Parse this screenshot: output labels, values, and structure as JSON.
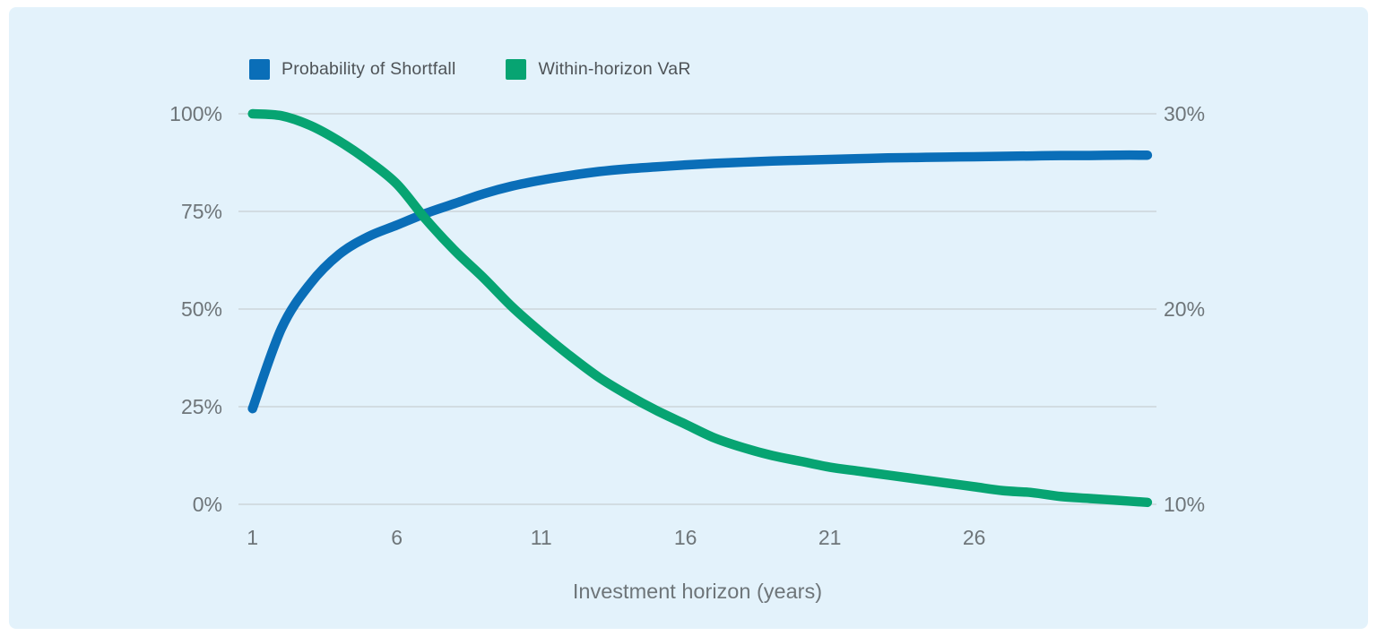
{
  "panel": {
    "background": "#e3f2fb",
    "outer_background": "#ffffff",
    "gridline_color": "#ccd5da",
    "axis_label_color": "#6e7579",
    "legend_label_color": "#4e5357"
  },
  "legend": [
    {
      "label": "Probability of Shortfall",
      "color": "#0a6eb8"
    },
    {
      "label": "Within-horizon VaR",
      "color": "#07a472"
    }
  ],
  "chart_data": {
    "type": "line",
    "title": "",
    "xlabel": "Investment horizon (years)",
    "ylabel_left": "",
    "ylabel_right": "",
    "x": [
      1,
      2,
      3,
      4,
      5,
      6,
      7,
      8,
      9,
      10,
      11,
      12,
      13,
      14,
      15,
      16,
      17,
      18,
      19,
      20,
      21,
      22,
      23,
      24,
      25,
      26,
      27,
      28,
      29,
      30,
      31,
      32
    ],
    "x_ticks": [
      {
        "value": 1,
        "label": "1"
      },
      {
        "value": 6,
        "label": "6"
      },
      {
        "value": 11,
        "label": "11"
      },
      {
        "value": 16,
        "label": "16"
      },
      {
        "value": 21,
        "label": "21"
      },
      {
        "value": 26,
        "label": "26"
      }
    ],
    "left_axis": {
      "range": [
        0,
        100
      ],
      "ticks": [
        {
          "value": 100,
          "label": "100%"
        },
        {
          "value": 75,
          "label": "75%"
        },
        {
          "value": 50,
          "label": "50%"
        },
        {
          "value": 25,
          "label": "25%"
        },
        {
          "value": 0,
          "label": "0%"
        }
      ]
    },
    "right_axis": {
      "range": [
        10,
        30
      ],
      "ticks": [
        {
          "value": 30,
          "label": "30%"
        },
        {
          "value": 20,
          "label": "20%"
        },
        {
          "value": 10,
          "label": "10%"
        }
      ]
    },
    "grid": true,
    "legend_position": "top-left",
    "series": [
      {
        "name": "Probability of Shortfall",
        "axis": "left",
        "color": "#0a6eb8",
        "values": [
          24.5,
          45,
          56.5,
          64,
          68.5,
          71.5,
          74.5,
          77,
          79.5,
          81.5,
          83,
          84.2,
          85.2,
          85.9,
          86.4,
          86.9,
          87.3,
          87.6,
          87.9,
          88.1,
          88.3,
          88.5,
          88.7,
          88.8,
          88.9,
          89.0,
          89.1,
          89.2,
          89.3,
          89.3,
          89.4,
          89.4
        ]
      },
      {
        "name": "Within-horizon VaR",
        "axis": "right",
        "color": "#07a472",
        "values": [
          30,
          29.9,
          29.4,
          28.6,
          27.6,
          26.4,
          24.6,
          23.0,
          21.6,
          20.1,
          18.8,
          17.6,
          16.5,
          15.6,
          14.8,
          14.1,
          13.4,
          12.9,
          12.5,
          12.2,
          11.9,
          11.7,
          11.5,
          11.3,
          11.1,
          10.9,
          10.7,
          10.6,
          10.4,
          10.3,
          10.2,
          10.1
        ]
      }
    ]
  }
}
